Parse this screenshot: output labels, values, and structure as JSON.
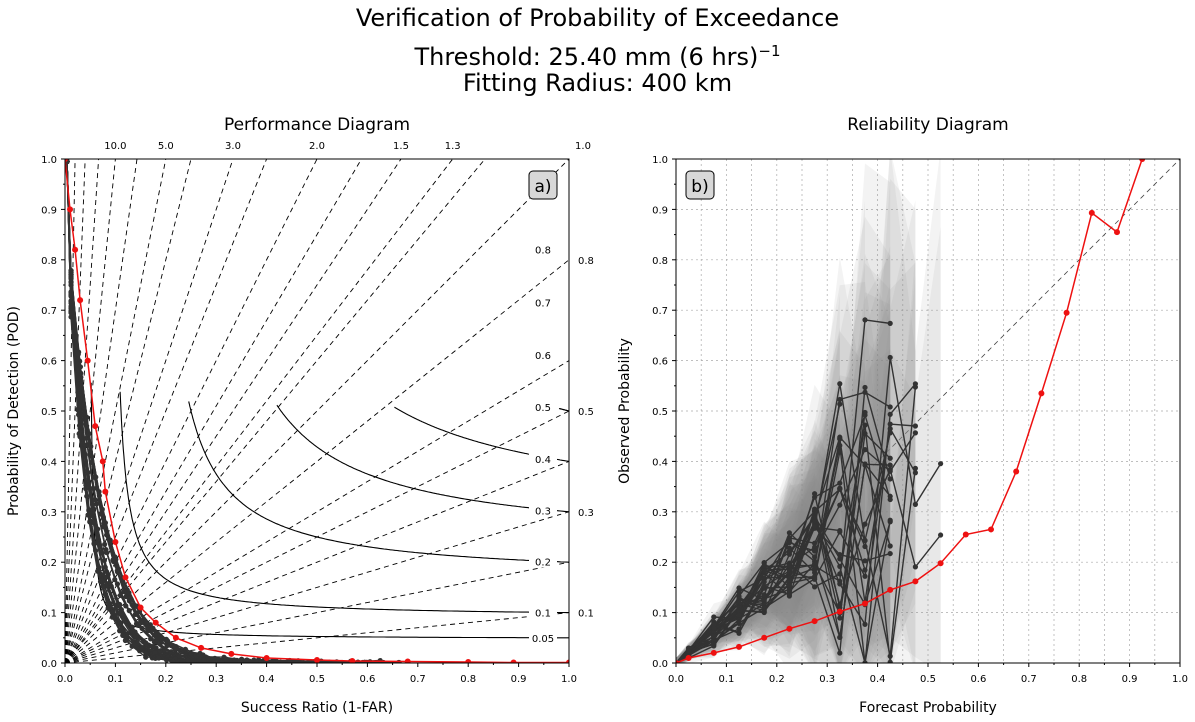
{
  "figure": {
    "title_line1": "Verification of Probability of Exceedance",
    "title_line2_prefix": "Threshold: 25.40 mm (6 hrs)",
    "title_line2_sup": "−1",
    "title_line3": "Fitting Radius: 400 km"
  },
  "chart_data": [
    {
      "type": "line",
      "title": "Performance Diagram",
      "panel_label": "a)",
      "xlabel": "Success Ratio (1-FAR)",
      "ylabel": "Probability of Detection (POD)",
      "xlim": [
        0,
        1
      ],
      "ylim": [
        0,
        1
      ],
      "xticks": [
        "0.0",
        "0.1",
        "0.2",
        "0.3",
        "0.4",
        "0.5",
        "0.6",
        "0.7",
        "0.8",
        "0.9",
        "1.0"
      ],
      "yticks": [
        "0.0",
        "0.1",
        "0.2",
        "0.3",
        "0.4",
        "0.5",
        "0.6",
        "0.7",
        "0.8",
        "0.9",
        "1.0"
      ],
      "bias_lines": [
        {
          "bias": 10.0,
          "label": "10.0"
        },
        {
          "bias": 5.0,
          "label": "5.0"
        },
        {
          "bias": 3.0,
          "label": "3.0"
        },
        {
          "bias": 2.0,
          "label": "2.0"
        },
        {
          "bias": 1.5,
          "label": "1.5"
        },
        {
          "bias": 1.3,
          "label": "1.3"
        },
        {
          "bias": 1.0,
          "label": "1.0"
        },
        {
          "bias": 0.8,
          "label": "0.8"
        },
        {
          "bias": 0.5,
          "label": "0.5"
        },
        {
          "bias": 0.3,
          "label": "0.3"
        },
        {
          "bias": 0.1,
          "label": "0.1"
        },
        {
          "bias": 0.6,
          "label": ""
        },
        {
          "bias": 0.4,
          "label": ""
        },
        {
          "bias": 0.2,
          "label": ""
        },
        {
          "bias": 1.2,
          "label": ""
        },
        {
          "bias": 1.7,
          "label": ""
        },
        {
          "bias": 2.5,
          "label": ""
        },
        {
          "bias": 4.0,
          "label": ""
        },
        {
          "bias": 7.0,
          "label": ""
        },
        {
          "bias": 15.0,
          "label": ""
        },
        {
          "bias": 25.0,
          "label": ""
        },
        {
          "bias": 50.0,
          "label": ""
        }
      ],
      "csi_contours": [
        {
          "csi": 0.05,
          "label": "0.05"
        },
        {
          "csi": 0.1,
          "label": "0.1"
        },
        {
          "csi": 0.2,
          "label": "0.2"
        },
        {
          "csi": 0.3,
          "label": "0.3"
        },
        {
          "csi": 0.4,
          "label": "0.4"
        },
        {
          "csi": 0.5,
          "label": "0.5"
        },
        {
          "csi": 0.6,
          "label": "0.6"
        },
        {
          "csi": 0.7,
          "label": "0.7"
        },
        {
          "csi": 0.8,
          "label": "0.8"
        }
      ],
      "member_curve_count": 30,
      "highlight_series": {
        "color": "#ee1111",
        "points": [
          [
            0.0,
            1.0
          ],
          [
            0.01,
            0.9
          ],
          [
            0.02,
            0.82
          ],
          [
            0.03,
            0.72
          ],
          [
            0.045,
            0.6
          ],
          [
            0.06,
            0.47
          ],
          [
            0.075,
            0.4
          ],
          [
            0.08,
            0.34
          ],
          [
            0.1,
            0.24
          ],
          [
            0.12,
            0.17
          ],
          [
            0.15,
            0.11
          ],
          [
            0.18,
            0.08
          ],
          [
            0.22,
            0.05
          ],
          [
            0.27,
            0.03
          ],
          [
            0.33,
            0.018
          ],
          [
            0.4,
            0.01
          ],
          [
            0.5,
            0.006
          ],
          [
            0.57,
            0.004
          ],
          [
            0.68,
            0.003
          ],
          [
            0.8,
            0.002
          ],
          [
            0.89,
            0.001
          ],
          [
            1.0,
            0.001
          ]
        ]
      }
    },
    {
      "type": "line",
      "title": "Reliability Diagram",
      "panel_label": "b)",
      "xlabel": "Forecast Probability",
      "ylabel": "Observed Probability",
      "xlim": [
        0,
        1
      ],
      "ylim": [
        0,
        1
      ],
      "grid": true,
      "xticks": [
        "0.0",
        "0.1",
        "0.2",
        "0.3",
        "0.4",
        "0.5",
        "0.6",
        "0.7",
        "0.8",
        "0.9",
        "1.0"
      ],
      "yticks": [
        "0.0",
        "0.1",
        "0.2",
        "0.3",
        "0.4",
        "0.5",
        "0.6",
        "0.7",
        "0.8",
        "0.9",
        "1.0"
      ],
      "member_curve_count": 30,
      "highlight_series": {
        "color": "#ee1111",
        "points": [
          [
            0.0,
            0.0
          ],
          [
            0.025,
            0.01
          ],
          [
            0.075,
            0.02
          ],
          [
            0.125,
            0.032
          ],
          [
            0.175,
            0.05
          ],
          [
            0.225,
            0.068
          ],
          [
            0.275,
            0.083
          ],
          [
            0.325,
            0.102
          ],
          [
            0.375,
            0.118
          ],
          [
            0.425,
            0.145
          ],
          [
            0.475,
            0.162
          ],
          [
            0.525,
            0.198
          ],
          [
            0.575,
            0.255
          ],
          [
            0.625,
            0.265
          ],
          [
            0.675,
            0.38
          ],
          [
            0.725,
            0.535
          ],
          [
            0.775,
            0.695
          ],
          [
            0.825,
            0.893
          ],
          [
            0.875,
            0.855
          ],
          [
            0.925,
            1.0
          ]
        ]
      }
    }
  ]
}
